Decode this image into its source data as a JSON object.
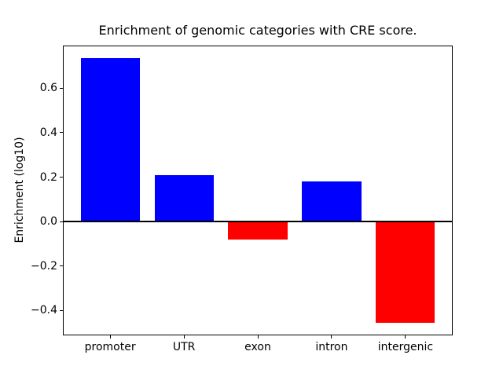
{
  "figure": {
    "background": "#ffffff"
  },
  "chart_data": {
    "type": "bar",
    "title": "Enrichment of genomic categories with CRE score.",
    "xlabel": "",
    "ylabel": "Enrichment (log10)",
    "categories": [
      "promoter",
      "UTR",
      "exon",
      "intron",
      "intergenic"
    ],
    "values": [
      0.735,
      0.21,
      -0.08,
      0.18,
      -0.455
    ],
    "bar_colors": [
      "#0000ff",
      "#0000ff",
      "#ff0000",
      "#0000ff",
      "#ff0000"
    ],
    "positive_color": "#0000ff",
    "negative_color": "#ff0000",
    "ylim": [
      -0.512,
      0.792
    ],
    "yticks": [
      {
        "value": 0.6,
        "label": "0.6"
      },
      {
        "value": 0.4,
        "label": "0.4"
      },
      {
        "value": 0.2,
        "label": "0.2"
      },
      {
        "value": 0.0,
        "label": "0.0"
      },
      {
        "value": -0.2,
        "label": "−0.2"
      },
      {
        "value": -0.4,
        "label": "−0.4"
      }
    ],
    "grid": false,
    "legend": false,
    "zero_line": {
      "show": true,
      "color": "#000000"
    }
  }
}
